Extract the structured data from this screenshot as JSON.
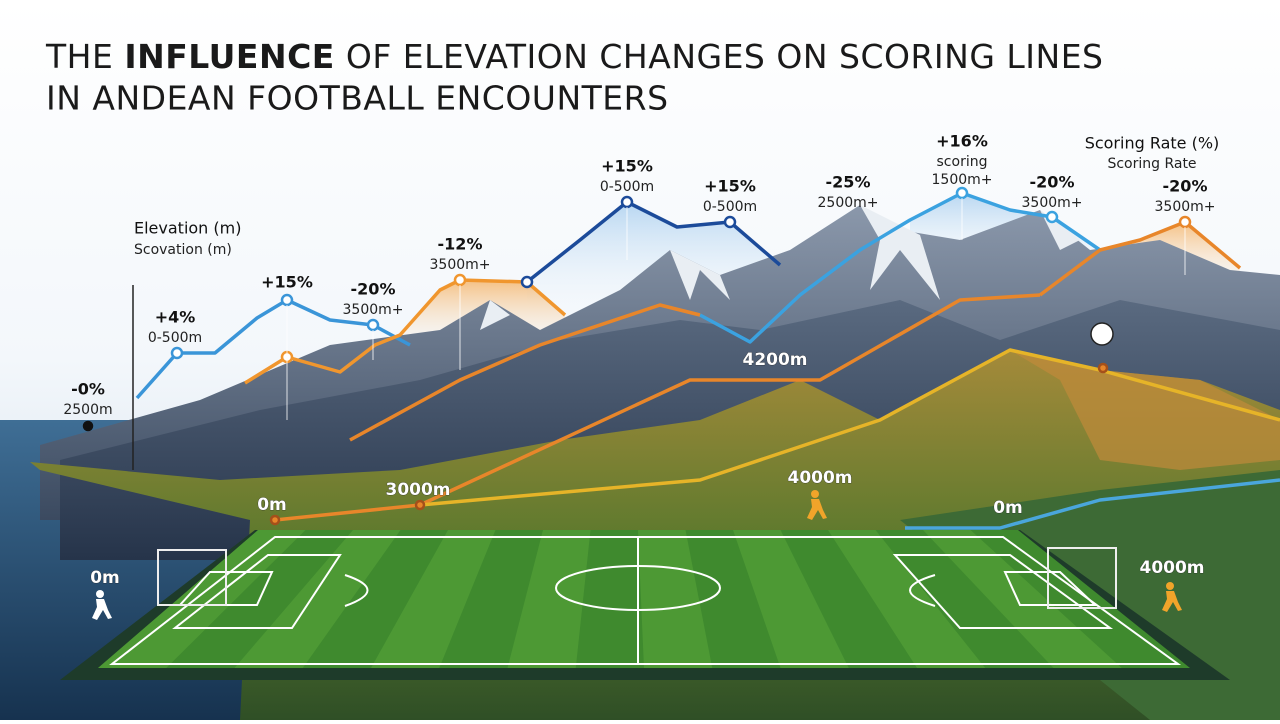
{
  "title": {
    "line1": {
      "before": "THE",
      "bold": "INFLUENCE",
      "after": "OF ELEVATION CHANGES ON SCORING LINES"
    },
    "line2": "IN ANDEAN FOOTBALL ENCOUNTERS"
  },
  "left_axis": {
    "label": "Elevation (m)",
    "sublabel": "Scovation (m)"
  },
  "right_axis": {
    "label": "Scoring Rate (%)",
    "sublabel": "Scoring Rate"
  },
  "annotations": [
    {
      "change": "-0%",
      "elevation": "2500m"
    },
    {
      "change": "+4%",
      "elevation": "0-500m"
    },
    {
      "change": "+15%"
    },
    {
      "change": "-20%",
      "elevation": "3500m+"
    },
    {
      "change": "-12%",
      "elevation": "3500m+"
    },
    {
      "change": "+15%",
      "elevation": "0-500m"
    },
    {
      "change": "+15%",
      "elevation": "0-500m"
    },
    {
      "change": "-25%",
      "elevation": "2500m+"
    },
    {
      "change": "+16%",
      "note": "scoring",
      "elevation": "1500m+"
    },
    {
      "change": "-20%",
      "elevation": "3500m+"
    },
    {
      "change": "-20%",
      "elevation": "3500m+"
    }
  ],
  "elevation_markers": [
    "4200m",
    "0m",
    "3000m",
    "4000m",
    "0m",
    "0m",
    "4000m"
  ]
}
